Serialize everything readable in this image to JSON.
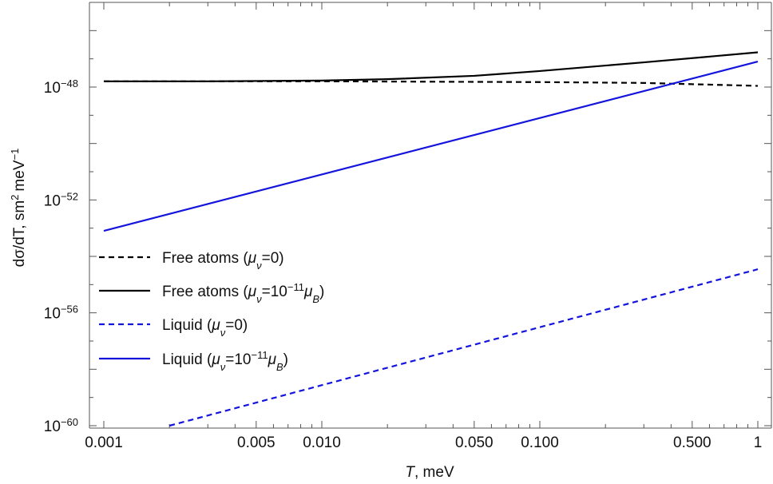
{
  "chart_data": {
    "type": "line",
    "xscale": "log",
    "yscale": "log",
    "xlim": [
      0.001,
      1
    ],
    "ylim": [
      1e-60,
      1e-45
    ],
    "xlabel": {
      "var": "T",
      "unit": "meV"
    },
    "ylabel": {
      "main": "dσ/dT,  sm",
      "unit": "meV",
      "sm_exp": "2",
      "unit_exp": "−1"
    },
    "xticks": [
      {
        "value": 0.001,
        "label": "0.001"
      },
      {
        "value": 0.005,
        "label": "0.005"
      },
      {
        "value": 0.01,
        "label": "0.010"
      },
      {
        "value": 0.05,
        "label": "0.050"
      },
      {
        "value": 0.1,
        "label": "0.100"
      },
      {
        "value": 0.5,
        "label": "0.500"
      },
      {
        "value": 1,
        "label": "1"
      }
    ],
    "yticks": [
      {
        "exp": -48,
        "base": "10",
        "sup": "−48"
      },
      {
        "exp": -52,
        "base": "10",
        "sup": "−52"
      },
      {
        "exp": -56,
        "base": "10",
        "sup": "−56"
      },
      {
        "exp": -60,
        "base": "10",
        "sup": "−60"
      }
    ],
    "grid": false,
    "legend_position": "left",
    "series": [
      {
        "name": "Free atoms (μν=0)",
        "legend": {
          "pre": "Free atoms (",
          "mu": "μ",
          "sub": "ν",
          "post": "=0)"
        },
        "color": "#000000",
        "dash": true,
        "points": [
          [
            0.001,
            1.6e-48
          ],
          [
            0.003,
            1.6e-48
          ],
          [
            0.01,
            1.6e-48
          ],
          [
            0.03,
            1.55e-48
          ],
          [
            0.1,
            1.5e-48
          ],
          [
            0.3,
            1.4e-48
          ],
          [
            1,
            1.1e-48
          ]
        ]
      },
      {
        "name": "Free atoms (μν=10⁻¹¹μB)",
        "legend": {
          "pre": "Free atoms (",
          "mu": "μ",
          "sub": "ν",
          "mid": "=10",
          "sup": "−11",
          "mu2": "μ",
          "sub2": "B",
          "post": ")"
        },
        "color": "#000000",
        "dash": false,
        "points": [
          [
            0.001,
            1.6e-48
          ],
          [
            0.003,
            1.6e-48
          ],
          [
            0.01,
            1.7e-48
          ],
          [
            0.02,
            1.9e-48
          ],
          [
            0.05,
            2.5e-48
          ],
          [
            0.1,
            3.7e-48
          ],
          [
            0.3,
            7.5e-48
          ],
          [
            1,
            1.7e-47
          ]
        ]
      },
      {
        "name": "Liquid (μν=0)",
        "legend": {
          "pre": "Liquid (",
          "mu": "μ",
          "sub": "ν",
          "post": "=0)"
        },
        "color": "#1414dd",
        "dash": true,
        "points": [
          [
            0.002,
            1e-60
          ],
          [
            1,
            3.5e-55
          ]
        ]
      },
      {
        "name": "Liquid (μν=10⁻¹¹μB)",
        "legend": {
          "pre": "Liquid (",
          "mu": "μ",
          "sub": "ν",
          "mid": "=10",
          "sup": "−11",
          "mu2": "μ",
          "sub2": "B",
          "post": ")"
        },
        "color": "#1414dd",
        "dash": false,
        "points": [
          [
            0.001,
            8e-54
          ],
          [
            1,
            8e-48
          ]
        ]
      }
    ]
  }
}
